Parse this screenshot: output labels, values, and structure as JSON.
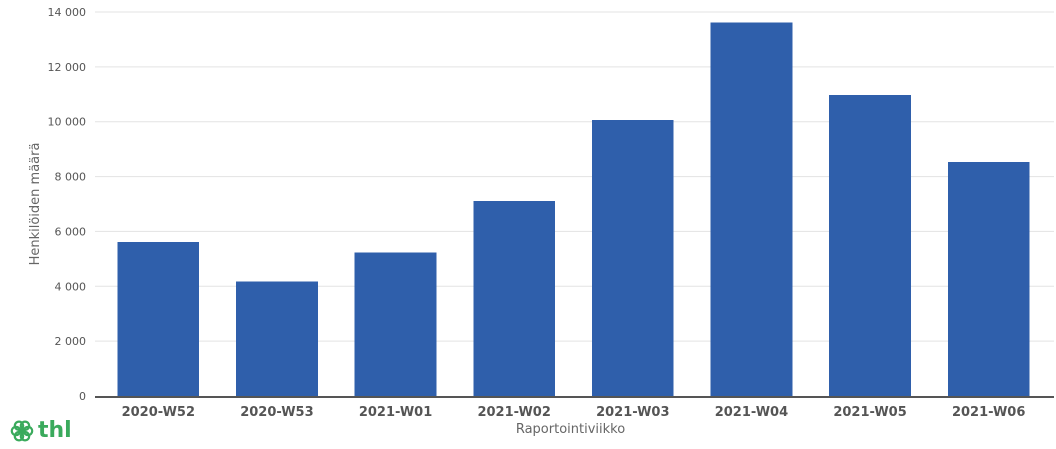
{
  "colors": {
    "bar": "#2f5fab",
    "logo": "#3aaa5c"
  },
  "logo": {
    "text": "thl",
    "icon": "flower-icon"
  },
  "chart_data": {
    "type": "bar",
    "categories": [
      "2020-W52",
      "2020-W53",
      "2021-W01",
      "2021-W02",
      "2021-W03",
      "2021-W04",
      "2021-W05",
      "2021-W06"
    ],
    "values": [
      5620,
      4180,
      5230,
      7110,
      10060,
      13610,
      10970,
      8540
    ],
    "title": "",
    "xlabel": "Raportointiviikko",
    "ylabel": "Henkilöiden määrä",
    "ylim": [
      0,
      14000
    ],
    "yticks": [
      0,
      2000,
      4000,
      6000,
      8000,
      10000,
      12000,
      14000
    ],
    "ytick_labels": [
      "0",
      "2 000",
      "4 000",
      "6 000",
      "8 000",
      "10 000",
      "12 000",
      "14 000"
    ],
    "grid": true,
    "legend": "none"
  }
}
